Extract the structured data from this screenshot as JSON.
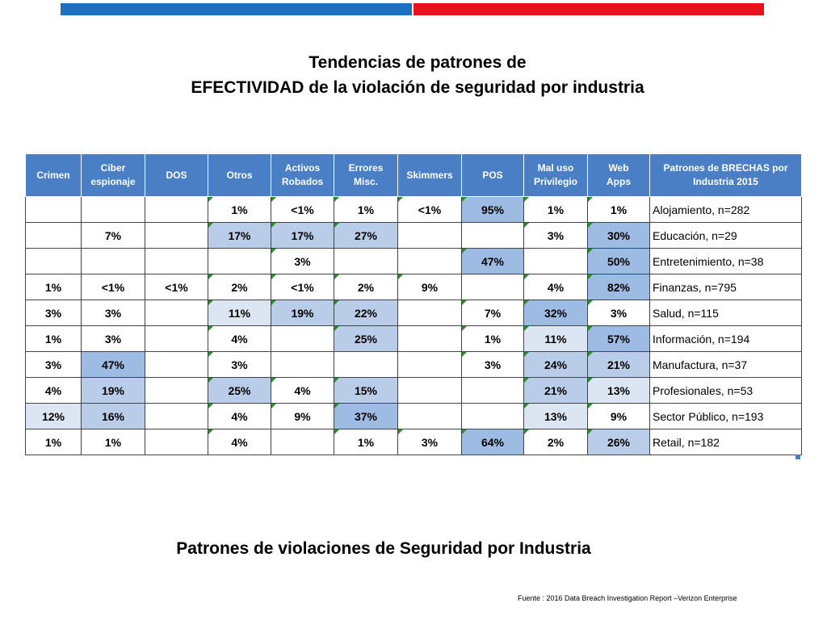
{
  "title": {
    "line1": "Tendencias de patrones de",
    "line2": "EFECTIVIDAD de la violación de seguridad por industria"
  },
  "columns": [
    [
      "Crimen"
    ],
    [
      "Ciber",
      "espionaje"
    ],
    [
      "DOS"
    ],
    [
      "Otros"
    ],
    [
      "Activos",
      "Robados"
    ],
    [
      "Errores",
      "Misc."
    ],
    [
      "Skimmers"
    ],
    [
      "POS"
    ],
    [
      "Mal uso",
      "Privilegio"
    ],
    [
      "Web",
      "Apps"
    ],
    [
      "Patrones de BRECHAS por",
      "Industria 2015"
    ]
  ],
  "rows": [
    {
      "industry": "Alojamiento, n=282",
      "values": [
        "",
        "",
        "",
        "1%",
        "<1%",
        "1%",
        "<1%",
        "95%",
        "1%",
        "1%"
      ]
    },
    {
      "industry": "Educación, n=29",
      "values": [
        "",
        "7%",
        "",
        "17%",
        "17%",
        "27%",
        "",
        "",
        "3%",
        "30%"
      ]
    },
    {
      "industry": "Entretenimiento, n=38",
      "values": [
        "",
        "",
        "",
        "",
        "3%",
        "",
        "",
        "47%",
        "",
        "50%"
      ]
    },
    {
      "industry": "Finanzas, n=795",
      "values": [
        "1%",
        "<1%",
        "<1%",
        "2%",
        "<1%",
        "2%",
        "9%",
        "",
        "4%",
        "82%"
      ]
    },
    {
      "industry": "Salud, n=115",
      "values": [
        "3%",
        "3%",
        "",
        "11%",
        "19%",
        "22%",
        "",
        "7%",
        "32%",
        "3%"
      ]
    },
    {
      "industry": "Información, n=194",
      "values": [
        "1%",
        "3%",
        "",
        "4%",
        "",
        "25%",
        "",
        "1%",
        "11%",
        "57%"
      ]
    },
    {
      "industry": "Manufactura, n=37",
      "values": [
        "3%",
        "47%",
        "",
        "3%",
        "",
        "",
        "",
        "3%",
        "24%",
        "21%"
      ]
    },
    {
      "industry": "Profesionales, n=53",
      "values": [
        "4%",
        "19%",
        "",
        "25%",
        "4%",
        "15%",
        "",
        "",
        "21%",
        "13%"
      ]
    },
    {
      "industry": "Sector Público, n=193",
      "values": [
        "12%",
        "16%",
        "",
        "4%",
        "9%",
        "37%",
        "",
        "",
        "13%",
        "9%"
      ]
    },
    {
      "industry": "Retail, n=182",
      "values": [
        "1%",
        "1%",
        "",
        "4%",
        "",
        "1%",
        "3%",
        "64%",
        "2%",
        "26%"
      ]
    }
  ],
  "subtitle": "Patrones de violaciones de Seguridad por Industria",
  "source": "Fuente : 2016 Data Breach Investigation Report –Verizon Enterprise",
  "colors": {
    "header_bg": "#4a7fc6",
    "shade_light": "#dce6f2",
    "shade_mid": "#b9cde8",
    "shade_strong": "#9dbbe3",
    "bar_blue": "#1e6fbe",
    "bar_red": "#e8121a"
  }
}
